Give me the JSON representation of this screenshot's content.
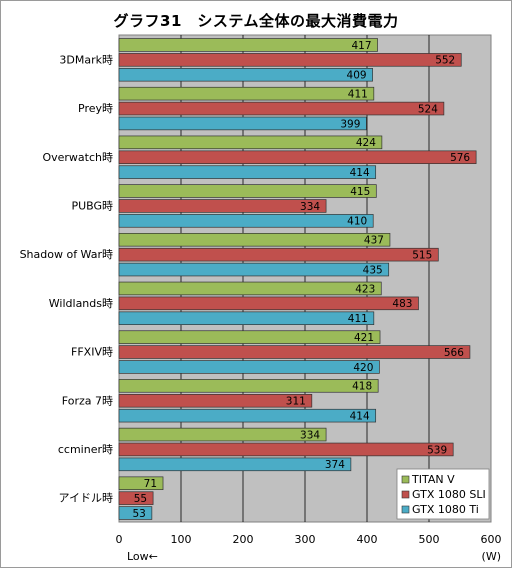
{
  "chart_data": {
    "type": "bar",
    "orientation": "horizontal",
    "title": "グラフ31　システム全体の最大消費電力",
    "categories": [
      "3DMark時",
      "Prey時",
      "Overwatch時",
      "PUBG時",
      "Shadow of War時",
      "Wildlands時",
      "FFXIV時",
      "Forza 7時",
      "ccminer時",
      "アイドル時"
    ],
    "series": [
      {
        "name": "TITAN V",
        "color": "#9bbb59",
        "values": [
          417,
          411,
          424,
          415,
          437,
          423,
          421,
          418,
          334,
          71
        ]
      },
      {
        "name": "GTX 1080 SLI",
        "color": "#c0504d",
        "values": [
          552,
          524,
          576,
          334,
          515,
          483,
          566,
          311,
          539,
          55
        ]
      },
      {
        "name": "GTX 1080 Ti",
        "color": "#4bacc6",
        "values": [
          409,
          399,
          414,
          410,
          435,
          411,
          420,
          414,
          374,
          53
        ]
      }
    ],
    "xlim": [
      0,
      600
    ],
    "xticks": [
      "0",
      "100",
      "200",
      "300",
      "400",
      "500",
      "600"
    ],
    "xunit": "(W)",
    "low_label": "Low←",
    "grid": true,
    "legend_position": "bottom-right",
    "plot_background": "#c0c0c0"
  }
}
